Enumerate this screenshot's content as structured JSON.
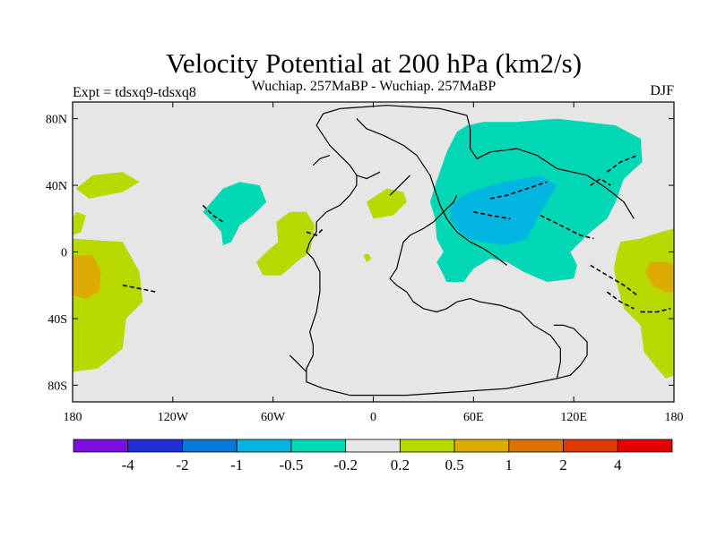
{
  "chart_data": {
    "type": "contour-map",
    "title": "Velocity Potential at 200 hPa (km2/s)",
    "left_label": "Expt = tdsxq9-tdsxq8",
    "center_label": "Wuchiap. 257MaBP - Wuchiap. 257MaBP",
    "right_label": "DJF",
    "lon_range": [
      -180,
      180
    ],
    "lat_range": [
      -90,
      90
    ],
    "lat_ticks": [
      {
        "value": 80,
        "label": "80N"
      },
      {
        "value": 40,
        "label": "40N"
      },
      {
        "value": 0,
        "label": "0"
      },
      {
        "value": -40,
        "label": "40S"
      },
      {
        "value": -80,
        "label": "80S"
      }
    ],
    "lon_ticks": [
      {
        "value": -180,
        "label": "180"
      },
      {
        "value": -120,
        "label": "120W"
      },
      {
        "value": -60,
        "label": "60W"
      },
      {
        "value": 0,
        "label": "0"
      },
      {
        "value": 60,
        "label": "60E"
      },
      {
        "value": 120,
        "label": "120E"
      },
      {
        "value": 180,
        "label": "180"
      }
    ],
    "colorbar": {
      "levels": [
        "-4",
        "-2",
        "-1",
        "-0.5",
        "-0.2",
        "0.2",
        "0.5",
        "1",
        "2",
        "4"
      ],
      "colors": [
        "#7a0fe0",
        "#1f2fd8",
        "#0a78d8",
        "#00b5e0",
        "#00d8b5",
        "#e6e6e6",
        "#b8d800",
        "#dcaa00",
        "#dc7200",
        "#dc3a00",
        "#e40000"
      ]
    },
    "background_color": "#e6e6e6",
    "regions": [
      {
        "level": "0.2 to 0.5",
        "color": "#b8d800",
        "outline": [
          [
            -180,
            20
          ],
          [
            -178,
            24
          ],
          [
            -172,
            22
          ],
          [
            -175,
            12
          ],
          [
            -180,
            10
          ]
        ]
      },
      {
        "level": "0.2 to 0.5",
        "color": "#b8d800",
        "outline": [
          [
            -178,
            38
          ],
          [
            -168,
            46
          ],
          [
            -150,
            48
          ],
          [
            -140,
            42
          ],
          [
            -150,
            36
          ],
          [
            -170,
            32
          ]
        ]
      },
      {
        "level": "0.2 to 0.5",
        "color": "#b8d800",
        "outline": [
          [
            -180,
            8
          ],
          [
            -150,
            6
          ],
          [
            -140,
            -12
          ],
          [
            -138,
            -30
          ],
          [
            -148,
            -40
          ],
          [
            -150,
            -58
          ],
          [
            -165,
            -70
          ],
          [
            -180,
            -72
          ]
        ]
      },
      {
        "level": "0.5 to 1",
        "color": "#dcaa00",
        "outline": [
          [
            -180,
            -2
          ],
          [
            -168,
            -2
          ],
          [
            -163,
            -12
          ],
          [
            -164,
            -24
          ],
          [
            -172,
            -28
          ],
          [
            -180,
            -26
          ]
        ]
      },
      {
        "level": "-0.5 to -0.2",
        "color": "#00d8b5",
        "outline": [
          [
            -102,
            24
          ],
          [
            -90,
            38
          ],
          [
            -80,
            42
          ],
          [
            -68,
            40
          ],
          [
            -64,
            30
          ],
          [
            -72,
            22
          ],
          [
            -80,
            16
          ],
          [
            -85,
            6
          ],
          [
            -90,
            4
          ],
          [
            -91,
            12
          ],
          [
            -96,
            18
          ]
        ]
      },
      {
        "level": "0.2 to 0.5",
        "color": "#b8d800",
        "outline": [
          [
            -58,
            18
          ],
          [
            -50,
            24
          ],
          [
            -40,
            24
          ],
          [
            -35,
            16
          ],
          [
            -38,
            0
          ],
          [
            -46,
            -6
          ],
          [
            -55,
            -14
          ],
          [
            -66,
            -14
          ],
          [
            -70,
            -6
          ],
          [
            -64,
            0
          ],
          [
            -57,
            6
          ]
        ]
      },
      {
        "level": "0.2 to 0.5",
        "color": "#b8d800",
        "outline": [
          [
            -4,
            30
          ],
          [
            8,
            38
          ],
          [
            18,
            36
          ],
          [
            20,
            30
          ],
          [
            12,
            22
          ],
          [
            0,
            20
          ]
        ]
      },
      {
        "level": "0.2 to 0.5",
        "color": "#b8d800",
        "outline": [
          [
            -6,
            -2
          ],
          [
            -3,
            -1
          ],
          [
            -1,
            -4
          ],
          [
            -4,
            -6
          ]
        ]
      },
      {
        "level": "-0.5 to -0.2",
        "color": "#00d8b5",
        "outline": [
          [
            37,
            40
          ],
          [
            44,
            60
          ],
          [
            50,
            72
          ],
          [
            56,
            76
          ],
          [
            66,
            78
          ],
          [
            86,
            78
          ],
          [
            110,
            80
          ],
          [
            145,
            76
          ],
          [
            160,
            68
          ],
          [
            161,
            54
          ],
          [
            150,
            44
          ],
          [
            145,
            30
          ],
          [
            140,
            20
          ],
          [
            130,
            12
          ],
          [
            124,
            6
          ],
          [
            118,
            0
          ],
          [
            122,
            -8
          ],
          [
            120,
            -16
          ],
          [
            104,
            -18
          ],
          [
            90,
            -12
          ],
          [
            80,
            -6
          ],
          [
            70,
            -4
          ],
          [
            60,
            -10
          ],
          [
            54,
            -18
          ],
          [
            44,
            -18
          ],
          [
            38,
            -6
          ],
          [
            42,
            0
          ],
          [
            38,
            8
          ],
          [
            37,
            20
          ],
          [
            34,
            30
          ]
        ]
      },
      {
        "level": "-1 to -0.5",
        "color": "#00b5e0",
        "outline": [
          [
            46,
            28
          ],
          [
            54,
            34
          ],
          [
            64,
            38
          ],
          [
            78,
            42
          ],
          [
            90,
            44
          ],
          [
            100,
            46
          ],
          [
            110,
            40
          ],
          [
            104,
            30
          ],
          [
            98,
            20
          ],
          [
            92,
            8
          ],
          [
            80,
            4
          ],
          [
            66,
            6
          ],
          [
            56,
            8
          ],
          [
            50,
            14
          ],
          [
            46,
            20
          ]
        ]
      },
      {
        "level": "0.2 to 0.5",
        "color": "#b8d800",
        "outline": [
          [
            148,
            6
          ],
          [
            160,
            8
          ],
          [
            172,
            12
          ],
          [
            180,
            14
          ],
          [
            180,
            -74
          ],
          [
            175,
            -76
          ],
          [
            170,
            -70
          ],
          [
            162,
            -60
          ],
          [
            160,
            -44
          ],
          [
            150,
            -34
          ],
          [
            146,
            -20
          ],
          [
            144,
            -10
          ],
          [
            146,
            0
          ]
        ]
      },
      {
        "level": "0.5 to 1",
        "color": "#dcaa00",
        "outline": [
          [
            166,
            -6
          ],
          [
            175,
            -6
          ],
          [
            180,
            -8
          ],
          [
            180,
            -24
          ],
          [
            175,
            -24
          ],
          [
            167,
            -20
          ],
          [
            163,
            -12
          ]
        ]
      }
    ],
    "coastlines": [
      [
        [
          -30,
          83
        ],
        [
          -20,
          86
        ],
        [
          8,
          88
        ],
        [
          40,
          86
        ],
        [
          56,
          82
        ],
        [
          58,
          74
        ],
        [
          58,
          62
        ],
        [
          62,
          56
        ],
        [
          70,
          60
        ],
        [
          86,
          62
        ],
        [
          98,
          58
        ],
        [
          110,
          50
        ],
        [
          128,
          46
        ],
        [
          140,
          38
        ],
        [
          150,
          30
        ],
        [
          156,
          20
        ]
      ],
      [
        [
          -10,
          80
        ],
        [
          -4,
          74
        ],
        [
          6,
          70
        ],
        [
          18,
          64
        ],
        [
          26,
          58
        ],
        [
          30,
          52
        ],
        [
          34,
          46
        ],
        [
          36,
          40
        ],
        [
          38,
          34
        ],
        [
          40,
          28
        ],
        [
          44,
          20
        ],
        [
          50,
          12
        ],
        [
          58,
          6
        ],
        [
          66,
          2
        ],
        [
          72,
          -2
        ],
        [
          80,
          -8
        ]
      ],
      [
        [
          -30,
          83
        ],
        [
          -34,
          76
        ],
        [
          -30,
          70
        ],
        [
          -26,
          64
        ],
        [
          -20,
          58
        ],
        [
          -14,
          52
        ],
        [
          -10,
          46
        ],
        [
          -10,
          40
        ],
        [
          -14,
          34
        ],
        [
          -20,
          28
        ],
        [
          -28,
          24
        ],
        [
          -34,
          18
        ],
        [
          -34,
          12
        ],
        [
          -38,
          6
        ],
        [
          -40,
          0
        ]
      ],
      [
        [
          -40,
          0
        ],
        [
          -36,
          -4
        ],
        [
          -32,
          -12
        ],
        [
          -32,
          -24
        ],
        [
          -34,
          -36
        ],
        [
          -38,
          -48
        ],
        [
          -36,
          -56
        ],
        [
          -36,
          -62
        ],
        [
          -40,
          -70
        ],
        [
          -40,
          -78
        ],
        [
          -30,
          -82
        ],
        [
          -14,
          -86
        ],
        [
          20,
          -86
        ],
        [
          50,
          -84
        ],
        [
          80,
          -82
        ],
        [
          100,
          -78
        ],
        [
          110,
          -76
        ],
        [
          112,
          -66
        ],
        [
          112,
          -58
        ],
        [
          106,
          -50
        ],
        [
          96,
          -44
        ],
        [
          88,
          -36
        ],
        [
          76,
          -32
        ],
        [
          64,
          -30
        ],
        [
          58,
          -28
        ],
        [
          50,
          -30
        ],
        [
          44,
          -34
        ],
        [
          38,
          -36
        ],
        [
          30,
          -34
        ],
        [
          24,
          -30
        ],
        [
          20,
          -24
        ],
        [
          14,
          -20
        ],
        [
          10,
          -16
        ],
        [
          14,
          -10
        ],
        [
          16,
          -2
        ],
        [
          18,
          6
        ],
        [
          22,
          10
        ],
        [
          30,
          14
        ],
        [
          36,
          18
        ],
        [
          42,
          24
        ],
        [
          48,
          30
        ],
        [
          50,
          34
        ]
      ],
      [
        [
          110,
          -76
        ],
        [
          118,
          -74
        ],
        [
          124,
          -68
        ],
        [
          128,
          -62
        ],
        [
          128,
          -54
        ],
        [
          124,
          -50
        ],
        [
          120,
          -46
        ],
        [
          114,
          -44
        ],
        [
          108,
          -44
        ]
      ],
      [
        [
          -50,
          -62
        ],
        [
          -46,
          -66
        ],
        [
          -40,
          -72
        ]
      ],
      [
        [
          -36,
          52
        ],
        [
          -32,
          56
        ],
        [
          -26,
          58
        ]
      ],
      [
        [
          -10,
          46
        ],
        [
          -4,
          44
        ],
        [
          0,
          46
        ],
        [
          4,
          48
        ]
      ],
      [
        [
          10,
          34
        ],
        [
          14,
          38
        ],
        [
          18,
          42
        ],
        [
          22,
          46
        ]
      ]
    ],
    "fault_lines": [
      [
        [
          -150,
          -20
        ],
        [
          -140,
          -22
        ],
        [
          -130,
          -24
        ]
      ],
      [
        [
          -102,
          28
        ],
        [
          -96,
          22
        ],
        [
          -90,
          18
        ]
      ],
      [
        [
          -40,
          12
        ],
        [
          -34,
          10
        ],
        [
          -30,
          14
        ]
      ],
      [
        [
          70,
          32
        ],
        [
          80,
          34
        ],
        [
          92,
          38
        ],
        [
          104,
          42
        ]
      ],
      [
        [
          60,
          24
        ],
        [
          70,
          22
        ],
        [
          82,
          20
        ]
      ],
      [
        [
          100,
          22
        ],
        [
          112,
          16
        ],
        [
          124,
          10
        ],
        [
          132,
          8
        ]
      ],
      [
        [
          130,
          -8
        ],
        [
          140,
          -14
        ],
        [
          150,
          -20
        ],
        [
          158,
          -26
        ]
      ],
      [
        [
          140,
          -24
        ],
        [
          148,
          -30
        ],
        [
          156,
          -34
        ]
      ],
      [
        [
          160,
          -36
        ],
        [
          170,
          -36
        ],
        [
          178,
          -34
        ]
      ],
      [
        [
          140,
          48
        ],
        [
          148,
          54
        ],
        [
          158,
          58
        ]
      ],
      [
        [
          130,
          40
        ],
        [
          136,
          44
        ],
        [
          142,
          40
        ]
      ]
    ]
  }
}
